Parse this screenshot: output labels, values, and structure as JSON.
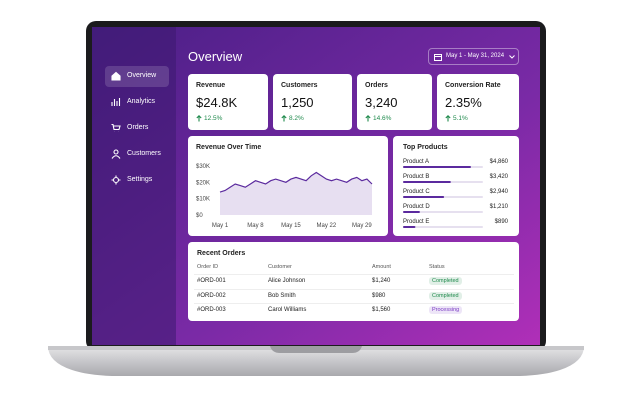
{
  "sidebar": {
    "items": [
      "Overview",
      "Analytics",
      "Orders",
      "Customers",
      "Settings"
    ]
  },
  "header": {
    "title": "Overview",
    "date_range": "May 1 - May 31, 2024"
  },
  "kpis": [
    {
      "label": "Revenue",
      "value": "$24.8K",
      "change": "12.5%"
    },
    {
      "label": "Customers",
      "value": "1,250",
      "change": "8.2%"
    },
    {
      "label": "Orders",
      "value": "3,240",
      "change": "14.6%"
    },
    {
      "label": "Conversion Rate",
      "value": "2.35%",
      "change": "5.1%"
    }
  ],
  "revenue_chart": {
    "type": "line",
    "title": "Revenue Over Time",
    "color": "#5b2a9e",
    "categories": [
      "May 1",
      null,
      null,
      null,
      null,
      null,
      null,
      "May 8",
      null,
      null,
      null,
      null,
      null,
      null,
      "May 15",
      null,
      null,
      null,
      null,
      null,
      null,
      "May 22",
      null,
      null,
      null,
      null,
      null,
      null,
      "May 29",
      null,
      null
    ],
    "values": [
      14000,
      15000,
      17000,
      19000,
      18000,
      17000,
      19000,
      21000,
      20000,
      19000,
      21000,
      22000,
      21000,
      20000,
      22000,
      23000,
      22000,
      21000,
      24000,
      26000,
      24000,
      22000,
      21000,
      22000,
      21000,
      20000,
      22000,
      23000,
      21000,
      22000,
      19000
    ],
    "ylim": [
      0,
      30000
    ],
    "yticks": [
      {
        "value": 0,
        "label": "$0"
      },
      {
        "value": 10000,
        "label": "$10K"
      },
      {
        "value": 20000,
        "label": "$20K"
      },
      {
        "value": 30000,
        "label": "$30K"
      }
    ]
  },
  "top_products": {
    "title": "Top Products",
    "color": "#5b2a9e",
    "items": [
      {
        "name": "Product A",
        "value": 4860,
        "label": "$4,860"
      },
      {
        "name": "Product B",
        "value": 3420,
        "label": "$3,420"
      },
      {
        "name": "Product C",
        "value": 2940,
        "label": "$2,940"
      },
      {
        "name": "Product D",
        "value": 1210,
        "label": "$1,210"
      },
      {
        "name": "Product E",
        "value": 890,
        "label": "$890"
      }
    ]
  },
  "recent_orders": {
    "title": "Recent Orders",
    "columns": [
      "Order ID",
      "Customer",
      "Amount",
      "Status"
    ],
    "rows": [
      {
        "id": "#ORD-001",
        "customer": "Alice Johnson",
        "amount": "$1,240",
        "status": "Completed",
        "status_color": "#1f8a4c"
      },
      {
        "id": "#ORD-002",
        "customer": "Bob Smith",
        "amount": "$980",
        "status": "Completed",
        "status_color": "#1f8a4c"
      },
      {
        "id": "#ORD-003",
        "customer": "Carol Williams",
        "amount": "$1,560",
        "status": "Processing",
        "status_color": "#7a3bc4"
      }
    ]
  }
}
